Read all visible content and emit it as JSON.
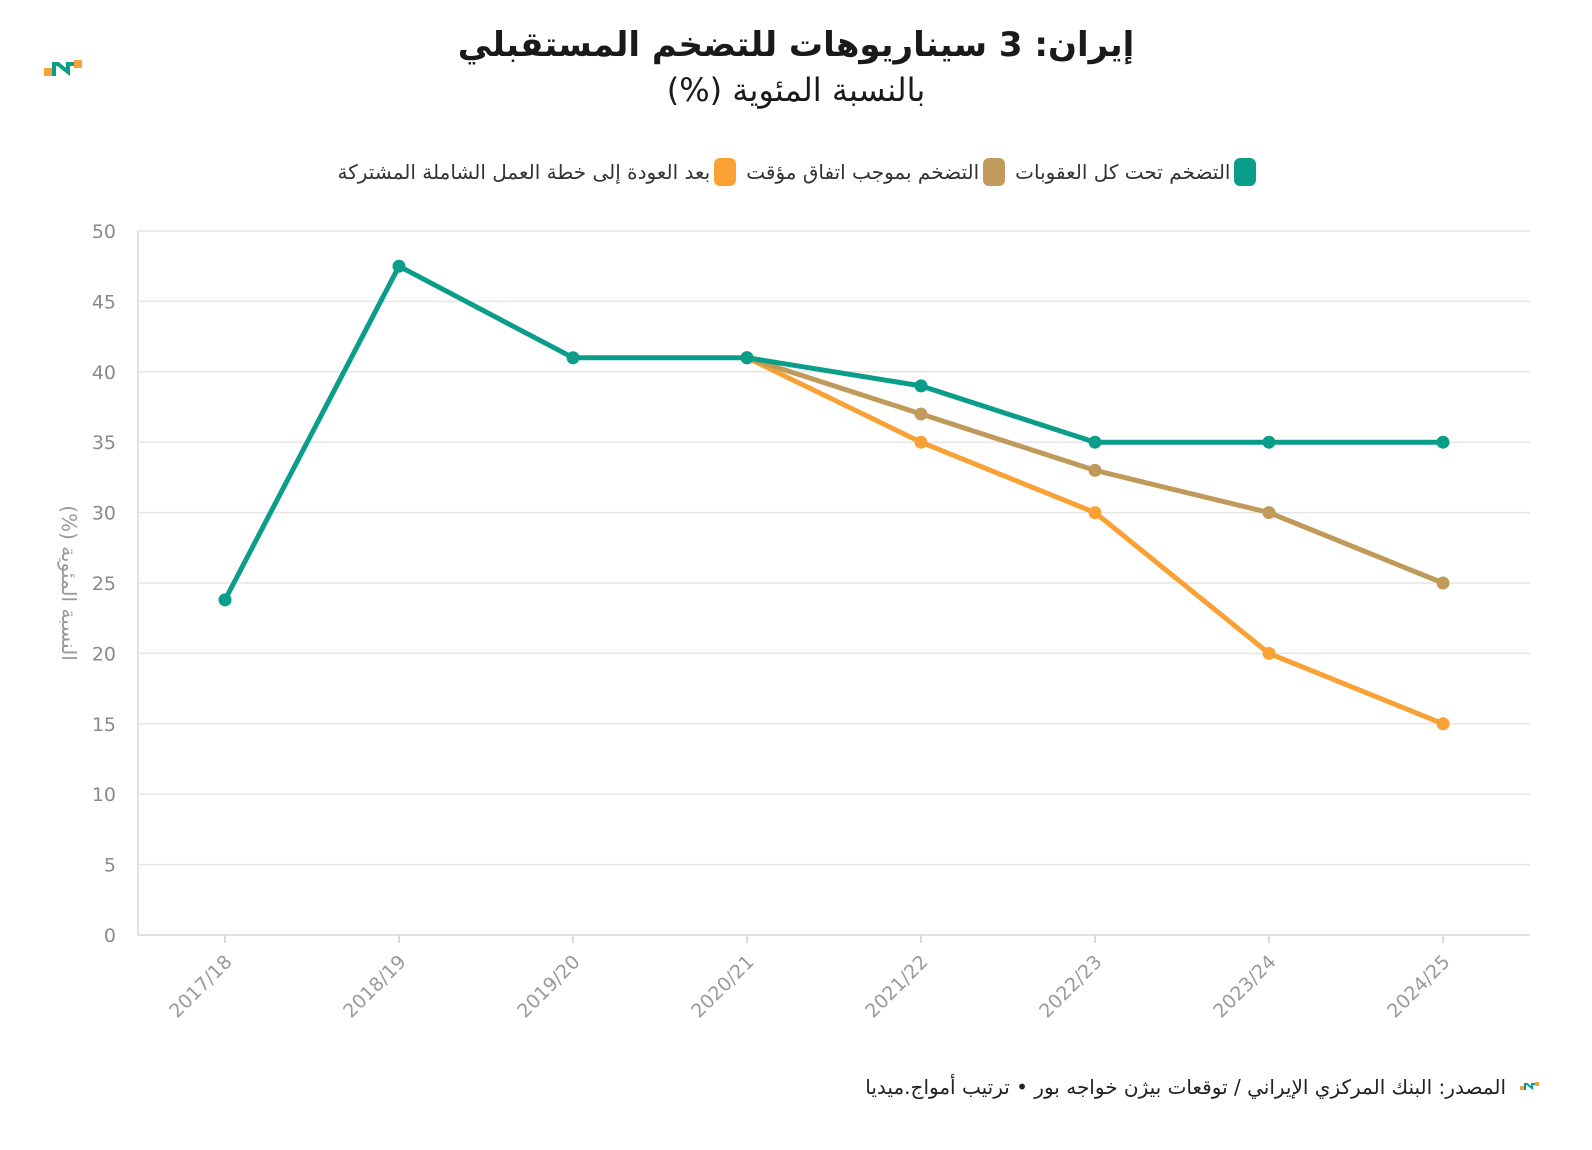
{
  "header": {
    "title": "إيران: 3 سيناريوهات للتضخم المستقبلي",
    "subtitle": "بالنسبة المئوية (%)"
  },
  "legend": [
    {
      "label": "التضخم تحت كل العقوبات",
      "color": "#0a9e8a"
    },
    {
      "label": "التضخم بموجب اتفاق مؤقت",
      "color": "#c09a5a"
    },
    {
      "label": "بعد العودة إلى خطة العمل الشاملة المشتركة",
      "color": "#f9a135"
    }
  ],
  "footer": {
    "source": "المصدر: البنك المركزي الإيراني / توقعات بيژن خواجه بور • ترتيب أمواج.ميديا"
  },
  "chart_data": {
    "type": "line",
    "title": "إيران: 3 سيناريوهات للتضخم المستقبلي",
    "subtitle": "بالنسبة المئوية (%)",
    "xlabel": "",
    "ylabel": "النسبة المئوية (%)",
    "ylim": [
      0,
      50
    ],
    "yticks": [
      0,
      5,
      10,
      15,
      20,
      25,
      30,
      35,
      40,
      45,
      50
    ],
    "categories": [
      "2017/18",
      "2018/19",
      "2019/20",
      "2020/21",
      "2021/22",
      "2022/23",
      "2023/24",
      "2024/25"
    ],
    "series": [
      {
        "name": "بعد العودة إلى خطة العمل الشاملة المشتركة",
        "color": "#f9a135",
        "values": [
          null,
          null,
          null,
          41,
          35,
          30,
          20,
          15
        ]
      },
      {
        "name": "التضخم بموجب اتفاق مؤقت",
        "color": "#c09a5a",
        "values": [
          null,
          null,
          null,
          41,
          37,
          33,
          30,
          25
        ]
      },
      {
        "name": "التضخم تحت كل العقوبات",
        "color": "#0a9e8a",
        "values": [
          23.8,
          47.5,
          41,
          41,
          39,
          35,
          35,
          35
        ]
      }
    ],
    "grid": true,
    "legend_position": "top-center"
  }
}
